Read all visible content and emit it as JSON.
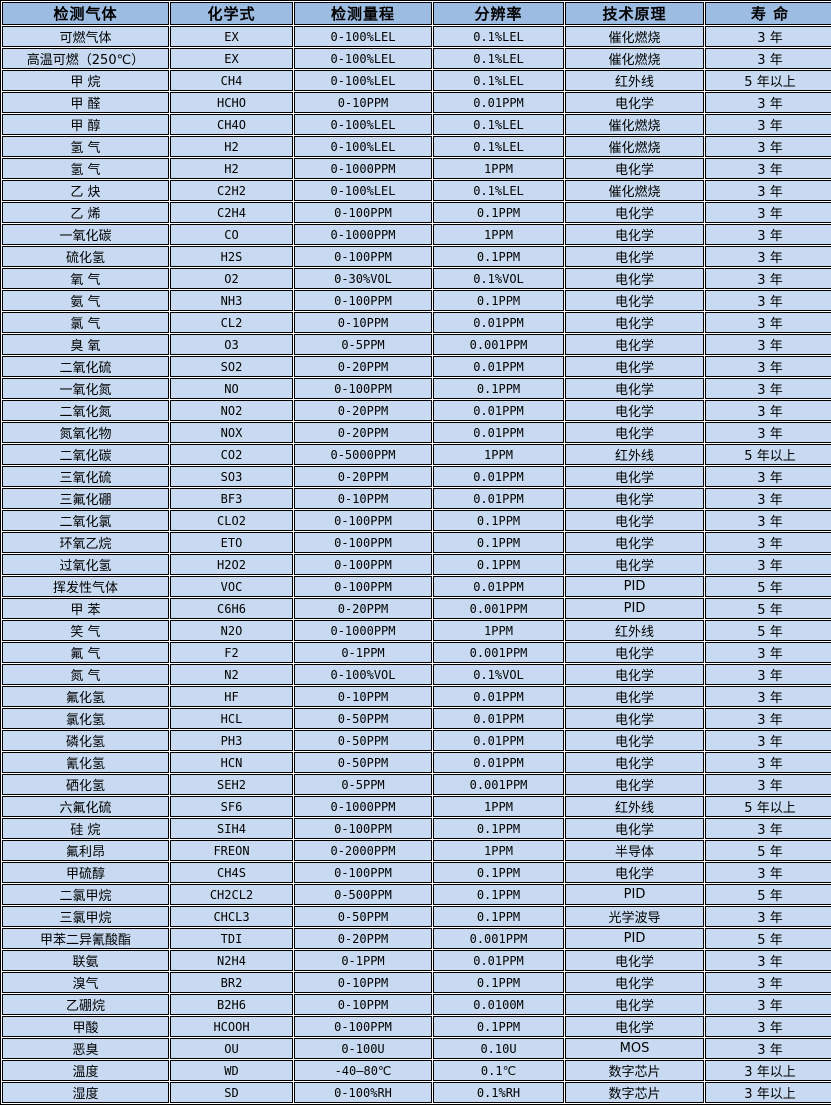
{
  "table": {
    "headers": [
      "检测气体",
      "化学式",
      "检测量程",
      "分辨率",
      "技术原理",
      "寿 命"
    ],
    "rows": [
      [
        "可燃气体",
        "EX",
        "0-100%LEL",
        "0.1%LEL",
        "催化燃烧",
        "3 年"
      ],
      [
        "高温可燃（250℃）",
        "EX",
        "0-100%LEL",
        "0.1%LEL",
        "催化燃烧",
        "3 年"
      ],
      [
        "甲 烷",
        "CH4",
        "0-100%LEL",
        "0.1%LEL",
        "红外线",
        "5 年以上"
      ],
      [
        "甲 醛",
        "HCHO",
        "0-10PPM",
        "0.01PPM",
        "电化学",
        "3 年"
      ],
      [
        "甲 醇",
        "CH4O",
        "0-100%LEL",
        "0.1%LEL",
        "催化燃烧",
        "3 年"
      ],
      [
        "氢 气",
        "H2",
        "0-100%LEL",
        "0.1%LEL",
        "催化燃烧",
        "3 年"
      ],
      [
        "氢 气",
        "H2",
        "0-1000PPM",
        "1PPM",
        "电化学",
        "3 年"
      ],
      [
        "乙 炔",
        "C2H2",
        "0-100%LEL",
        "0.1%LEL",
        "催化燃烧",
        "3 年"
      ],
      [
        "乙 烯",
        "C2H4",
        "0-100PPM",
        "0.1PPM",
        "电化学",
        "3 年"
      ],
      [
        "一氧化碳",
        "CO",
        "0-1000PPM",
        "1PPM",
        "电化学",
        "3 年"
      ],
      [
        "硫化氢",
        "H2S",
        "0-100PPM",
        "0.1PPM",
        "电化学",
        "3 年"
      ],
      [
        "氧 气",
        "O2",
        "0-30%VOL",
        "0.1%VOL",
        "电化学",
        "3 年"
      ],
      [
        "氨 气",
        "NH3",
        "0-100PPM",
        "0.1PPM",
        "电化学",
        "3 年"
      ],
      [
        "氯 气",
        "CL2",
        "0-10PPM",
        "0.01PPM",
        "电化学",
        "3 年"
      ],
      [
        "臭 氧",
        "O3",
        "0-5PPM",
        "0.001PPM",
        "电化学",
        "3 年"
      ],
      [
        "二氧化硫",
        "SO2",
        "0-20PPM",
        "0.01PPM",
        "电化学",
        "3 年"
      ],
      [
        "一氧化氮",
        "NO",
        "0-100PPM",
        "0.1PPM",
        "电化学",
        "3 年"
      ],
      [
        "二氧化氮",
        "NO2",
        "0-20PPM",
        "0.01PPM",
        "电化学",
        "3 年"
      ],
      [
        "氮氧化物",
        "NOX",
        "0-20PPM",
        "0.01PPM",
        "电化学",
        "3 年"
      ],
      [
        "二氧化碳",
        "CO2",
        "0-5000PPM",
        "1PPM",
        "红外线",
        "5 年以上"
      ],
      [
        "三氧化硫",
        "SO3",
        "0-20PPM",
        "0.01PPM",
        "电化学",
        "3 年"
      ],
      [
        "三氟化硼",
        "BF3",
        "0-10PPM",
        "0.01PPM",
        "电化学",
        "3 年"
      ],
      [
        "二氧化氯",
        "CLO2",
        "0-100PPM",
        "0.1PPM",
        "电化学",
        "3 年"
      ],
      [
        "环氧乙烷",
        "ETO",
        "0-100PPM",
        "0.1PPM",
        "电化学",
        "3 年"
      ],
      [
        "过氧化氢",
        "H2O2",
        "0-100PPM",
        "0.1PPM",
        "电化学",
        "3 年"
      ],
      [
        "挥发性气体",
        "VOC",
        "0-100PPM",
        "0.01PPM",
        "PID",
        "5 年"
      ],
      [
        "甲 苯",
        "C6H6",
        "0-20PPM",
        "0.001PPM",
        "PID",
        "5 年"
      ],
      [
        "笑 气",
        "N2O",
        "0-1000PPM",
        "1PPM",
        "红外线",
        "5 年"
      ],
      [
        "氟 气",
        "F2",
        "0-1PPM",
        "0.001PPM",
        "电化学",
        "3 年"
      ],
      [
        "氮 气",
        "N2",
        "0-100%VOL",
        "0.1%VOL",
        "电化学",
        "3 年"
      ],
      [
        "氟化氢",
        "HF",
        "0-10PPM",
        "0.01PPM",
        "电化学",
        "3 年"
      ],
      [
        "氯化氢",
        "HCL",
        "0-50PPM",
        "0.01PPM",
        "电化学",
        "3 年"
      ],
      [
        "磷化氢",
        "PH3",
        "0-50PPM",
        "0.01PPM",
        "电化学",
        "3 年"
      ],
      [
        "氰化氢",
        "HCN",
        "0-50PPM",
        "0.01PPM",
        "电化学",
        "3 年"
      ],
      [
        "硒化氢",
        "SEH2",
        "0-5PPM",
        "0.001PPM",
        "电化学",
        "3 年"
      ],
      [
        "六氟化硫",
        "SF6",
        "0-1000PPM",
        "1PPM",
        "红外线",
        "5 年以上"
      ],
      [
        "硅 烷",
        "SIH4",
        "0-100PPM",
        "0.1PPM",
        "电化学",
        "3 年"
      ],
      [
        "氟利昂",
        "FREON",
        "0-2000PPM",
        "1PPM",
        "半导体",
        "5 年"
      ],
      [
        "甲硫醇",
        "CH4S",
        "0-100PPM",
        "0.1PPM",
        "电化学",
        "3 年"
      ],
      [
        "二氯甲烷",
        "CH2CL2",
        "0-500PPM",
        "0.1PPM",
        "PID",
        "5 年"
      ],
      [
        "三氯甲烷",
        "CHCL3",
        "0-50PPM",
        "0.1PPM",
        "光学波导",
        "3 年"
      ],
      [
        "甲苯二异氰酸酯",
        "TDI",
        "0-20PPM",
        "0.001PPM",
        "PID",
        "5 年"
      ],
      [
        "联氨",
        "N2H4",
        "0-1PPM",
        "0.01PPM",
        "电化学",
        "3 年"
      ],
      [
        "溴气",
        "BR2",
        "0-10PPM",
        "0.1PPM",
        "电化学",
        "3 年"
      ],
      [
        "乙硼烷",
        "B2H6",
        "0-10PPM",
        "0.0100M",
        "电化学",
        "3 年"
      ],
      [
        "甲酸",
        "HCOOH",
        "0-100PPM",
        "0.1PPM",
        "电化学",
        "3 年"
      ],
      [
        "恶臭",
        "OU",
        "0-100U",
        "0.10U",
        "MOS",
        "3 年"
      ],
      [
        "温度",
        "WD",
        "-40—80℃",
        "0.1℃",
        "数字芯片",
        "3 年以上"
      ],
      [
        "湿度",
        "SD",
        "0-100%RH",
        "0.1%RH",
        "数字芯片",
        "3 年以上"
      ]
    ]
  },
  "colors": {
    "header_bg": "#9cbce2",
    "row_bg": "#c7daf1",
    "border": "#000000",
    "text": "#000000"
  }
}
